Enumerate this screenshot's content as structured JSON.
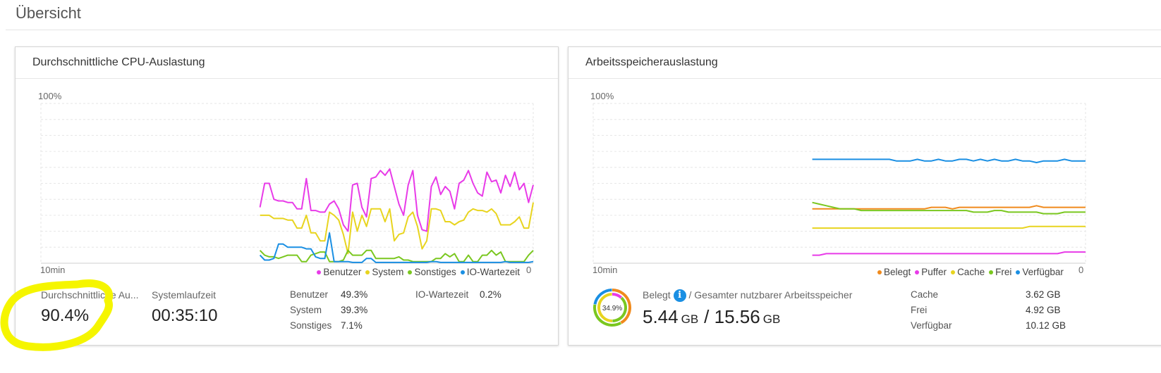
{
  "page": {
    "title": "Übersicht"
  },
  "colors": {
    "benutzer": "#e83be8",
    "system": "#e8d41f",
    "sonstiges": "#7ac71f",
    "io_wartezeit": "#1a8fe3",
    "belegt": "#f08a1c",
    "puffer": "#e83be8",
    "cache": "#e8d41f",
    "frei": "#7ac71f",
    "verfuegbar": "#1a8fe3",
    "highlight": "#f5f500"
  },
  "cpu": {
    "title": "Durchschnittliche CPU-Auslastung",
    "axis": {
      "top_label": "100%",
      "left_label": "10min",
      "right_label": "0"
    },
    "legend": [
      {
        "key": "benutzer",
        "label": "Benutzer",
        "color": "#e83be8"
      },
      {
        "key": "system",
        "label": "System",
        "color": "#e8d41f"
      },
      {
        "key": "sonstiges",
        "label": "Sonstiges",
        "color": "#7ac71f"
      },
      {
        "key": "io",
        "label": "IO-Wartezeit",
        "color": "#1a8fe3"
      }
    ],
    "avg_label": "Durchschnittliche Au...",
    "avg_value": "90.4%",
    "uptime_label": "Systemlaufzeit",
    "uptime_value": "00:35:10",
    "breakdown": [
      {
        "label": "Benutzer",
        "value": "49.3%"
      },
      {
        "label": "System",
        "value": "39.3%"
      },
      {
        "label": "Sonstiges",
        "value": "7.1%"
      }
    ],
    "io": {
      "label": "IO-Wartezeit",
      "value": "0.2%"
    }
  },
  "memory": {
    "title": "Arbeitsspeicherauslastung",
    "axis": {
      "top_label": "100%",
      "left_label": "10min",
      "right_label": "0"
    },
    "legend": [
      {
        "key": "belegt",
        "label": "Belegt",
        "color": "#f08a1c"
      },
      {
        "key": "puffer",
        "label": "Puffer",
        "color": "#e83be8"
      },
      {
        "key": "cache",
        "label": "Cache",
        "color": "#e8d41f"
      },
      {
        "key": "frei",
        "label": "Frei",
        "color": "#7ac71f"
      },
      {
        "key": "verfuegbar",
        "label": "Verfügbar",
        "color": "#1a8fe3"
      }
    ],
    "donut_label": "34.9%",
    "donut_percent": 34.9,
    "used_label": "Belegt",
    "total_label": "/ Gesamter nutzbarer Arbeitsspeicher",
    "used_value": "5.44",
    "used_unit": "GB",
    "slash": "/",
    "total_value": "15.56",
    "total_unit": "GB",
    "details": [
      {
        "label": "Cache",
        "value": "3.62 GB"
      },
      {
        "label": "Frei",
        "value": "4.92 GB"
      },
      {
        "label": "Verfügbar",
        "value": "10.12 GB"
      }
    ]
  },
  "chart_data": [
    {
      "type": "line",
      "title": "Durchschnittliche CPU-Auslastung",
      "xlabel": "10min … 0",
      "ylabel": "%",
      "ylim": [
        0,
        100
      ],
      "x_points": 60,
      "series": [
        {
          "name": "Benutzer",
          "values": [
            35,
            50,
            50,
            40,
            39,
            39,
            38,
            38,
            34,
            34,
            53,
            33,
            33,
            32,
            32,
            37,
            39,
            34,
            24,
            20,
            49,
            50,
            35,
            29,
            53,
            54,
            58,
            55,
            59,
            48,
            37,
            30,
            49,
            58,
            30,
            21,
            20,
            48,
            54,
            43,
            48,
            45,
            34,
            50,
            52,
            58,
            50,
            44,
            42,
            57,
            51,
            52,
            44,
            55,
            48,
            57,
            46,
            50,
            38,
            49
          ]
        },
        {
          "name": "System",
          "values": [
            30,
            30,
            30,
            28,
            28,
            28,
            27,
            27,
            22,
            22,
            30,
            19,
            19,
            14,
            14,
            32,
            30,
            27,
            18,
            6,
            32,
            20,
            30,
            23,
            34,
            34,
            34,
            26,
            34,
            14,
            18,
            19,
            29,
            32,
            23,
            9,
            14,
            34,
            34,
            33,
            26,
            26,
            24,
            26,
            27,
            32,
            34,
            33,
            33,
            32,
            34,
            31,
            24,
            24,
            24,
            26,
            29,
            22,
            22,
            38
          ]
        },
        {
          "name": "Sonstiges",
          "values": [
            8,
            5,
            4,
            4,
            3,
            4,
            5,
            5,
            5,
            1,
            1,
            5,
            6,
            7,
            7,
            1,
            1,
            1,
            2,
            8,
            5,
            5,
            5,
            8,
            8,
            3,
            3,
            3,
            3,
            3,
            4,
            2,
            2,
            1,
            1,
            1,
            1,
            1,
            3,
            3,
            6,
            4,
            6,
            1,
            1,
            5,
            1,
            1,
            5,
            5,
            8,
            5,
            7,
            1,
            1,
            1,
            1,
            1,
            5,
            8
          ]
        },
        {
          "name": "IO-Wartezeit",
          "values": [
            5,
            2,
            2,
            3,
            12,
            12,
            10,
            10,
            10,
            10,
            9,
            9,
            4,
            3,
            3,
            19,
            1,
            1,
            1,
            1,
            0.5,
            0.5,
            0.5,
            3,
            3,
            0.5,
            0.5,
            0.5,
            0.5,
            0.5,
            0.5,
            0.5,
            0.5,
            0.5,
            0.5,
            0.5,
            0.5,
            1,
            1,
            0.5,
            0.5,
            0.5,
            0.5,
            0.5,
            0.5,
            0.5,
            0.5,
            0.5,
            0.5,
            0.5,
            0.5,
            0.5,
            0.5,
            1,
            0.5,
            0.5,
            0.5,
            0.5,
            0.5,
            1
          ]
        }
      ]
    },
    {
      "type": "line",
      "title": "Arbeitsspeicherauslastung",
      "xlabel": "10min … 0",
      "ylabel": "%",
      "ylim": [
        0,
        100
      ],
      "x_points": 40,
      "series": [
        {
          "name": "Belegt",
          "values": [
            34,
            34,
            34,
            34,
            34,
            34,
            34,
            34,
            34,
            34,
            34,
            34,
            34,
            34,
            34,
            34,
            34,
            35,
            35,
            35,
            34,
            35,
            35,
            35,
            35,
            35,
            35,
            35,
            35,
            35,
            35,
            35,
            36,
            35,
            35,
            35,
            35,
            35,
            35,
            35
          ]
        },
        {
          "name": "Puffer",
          "values": [
            5,
            5,
            6,
            6,
            6,
            6,
            6,
            6,
            6,
            6,
            6,
            6,
            6,
            6,
            6,
            6,
            6,
            6,
            6,
            6,
            6,
            6,
            6,
            6,
            6,
            6,
            6,
            6,
            6,
            6,
            6,
            6,
            6,
            6,
            6,
            6,
            7,
            7,
            7,
            7
          ]
        },
        {
          "name": "Cache",
          "values": [
            22,
            22,
            22,
            22,
            22,
            22,
            22,
            22,
            22,
            22,
            22,
            22,
            22,
            22,
            22,
            22,
            22,
            22,
            22,
            22,
            22,
            22,
            22,
            22,
            22,
            22,
            22,
            22,
            22,
            22,
            22,
            23,
            23,
            23,
            23,
            23,
            23,
            23,
            23,
            23
          ]
        },
        {
          "name": "Frei",
          "values": [
            38,
            37,
            36,
            35,
            34,
            34,
            34,
            33,
            33,
            33,
            33,
            33,
            33,
            33,
            33,
            33,
            33,
            33,
            33,
            33,
            33,
            33,
            33,
            32,
            32,
            32,
            33,
            33,
            32,
            32,
            32,
            32,
            32,
            31,
            31,
            31,
            32,
            32,
            32,
            32
          ]
        },
        {
          "name": "Verfügbar",
          "values": [
            65,
            65,
            65,
            65,
            65,
            65,
            65,
            65,
            65,
            65,
            65,
            65,
            64,
            64,
            64,
            65,
            64,
            64,
            65,
            64,
            64,
            65,
            65,
            64,
            65,
            64,
            65,
            64,
            64,
            65,
            64,
            64,
            63,
            64,
            64,
            64,
            65,
            64,
            64,
            64
          ]
        }
      ]
    }
  ]
}
